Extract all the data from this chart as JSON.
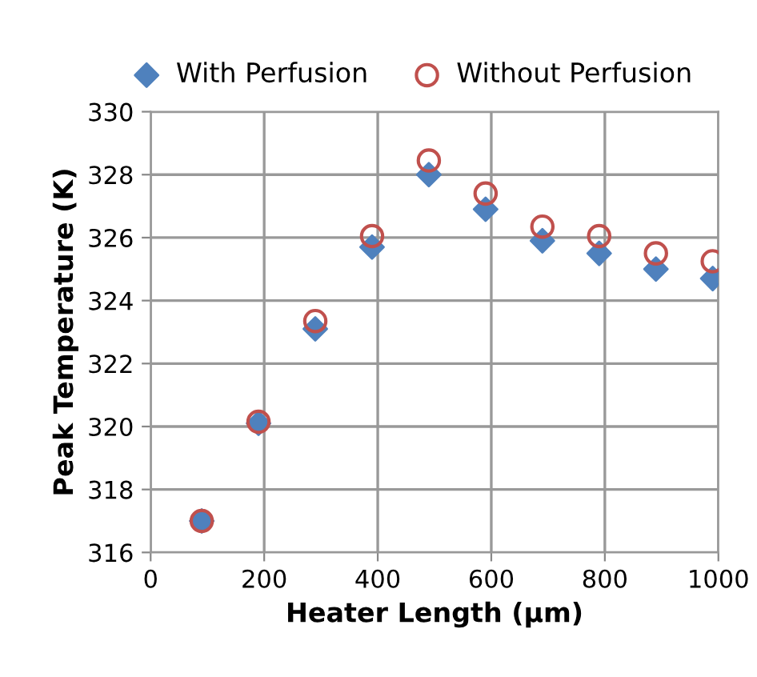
{
  "chart_data": {
    "type": "scatter",
    "xlabel": "Heater Length (µm)",
    "ylabel": "Peak Temperature (K)",
    "x": [
      90,
      190,
      290,
      390,
      490,
      590,
      690,
      790,
      890,
      990
    ],
    "series": [
      {
        "name": "With Perfusion",
        "color": "#4f81bd",
        "marker": "diamond",
        "values": [
          317.0,
          320.1,
          323.1,
          325.7,
          328.0,
          326.9,
          325.9,
          325.5,
          325.0,
          324.7
        ]
      },
      {
        "name": "Without Perfusion",
        "color": "#c0504d",
        "marker": "circle",
        "values": [
          317.0,
          320.15,
          323.35,
          326.05,
          328.45,
          327.4,
          326.35,
          326.05,
          325.5,
          325.25
        ]
      }
    ],
    "xlim": [
      0,
      1000
    ],
    "xticks": [
      0,
      200,
      400,
      600,
      800,
      1000
    ],
    "ylim": [
      316,
      330
    ],
    "yticks": [
      316,
      318,
      320,
      322,
      324,
      326,
      328,
      330
    ],
    "grid": true,
    "legend": "top"
  }
}
